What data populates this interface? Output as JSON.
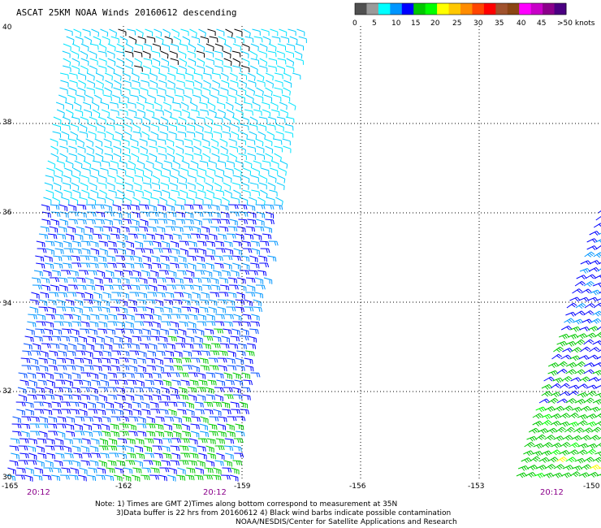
{
  "title": "ASCAT 25KM NOAA Winds 20160612 descending",
  "colorbar": {
    "colors": [
      "#505050",
      "#9a9a9a",
      "#00ffff",
      "#0096ff",
      "#0000ff",
      "#00c800",
      "#00ff00",
      "#ffff00",
      "#ffc800",
      "#ff8c00",
      "#ff4500",
      "#ff0000",
      "#a0522d",
      "#8b4513",
      "#ff00ff",
      "#c800c8",
      "#8b008b",
      "#4b0082"
    ],
    "labels": [
      "0",
      "5",
      "10",
      "15",
      "20",
      "25",
      "30",
      "35",
      "40",
      "45",
      ">50 knots"
    ]
  },
  "lat_labels": [
    "40",
    "38",
    "36",
    "34",
    "32",
    "30"
  ],
  "lon_labels": [
    "-165",
    "-162",
    "-159",
    "-156",
    "-153",
    "-150"
  ],
  "time_labels": [
    "20:12",
    "20:12",
    "20:12"
  ],
  "notes": {
    "line1": "Note: 1) Times are GMT 2)Times along bottom correspond to measurement at 35N",
    "line2": "3)Data buffer is 22 hrs from 20160612 4) Black wind barbs indicate possible contamination",
    "line3": "NOAA/NESDIS/Center for Satellite Applications and Research"
  }
}
